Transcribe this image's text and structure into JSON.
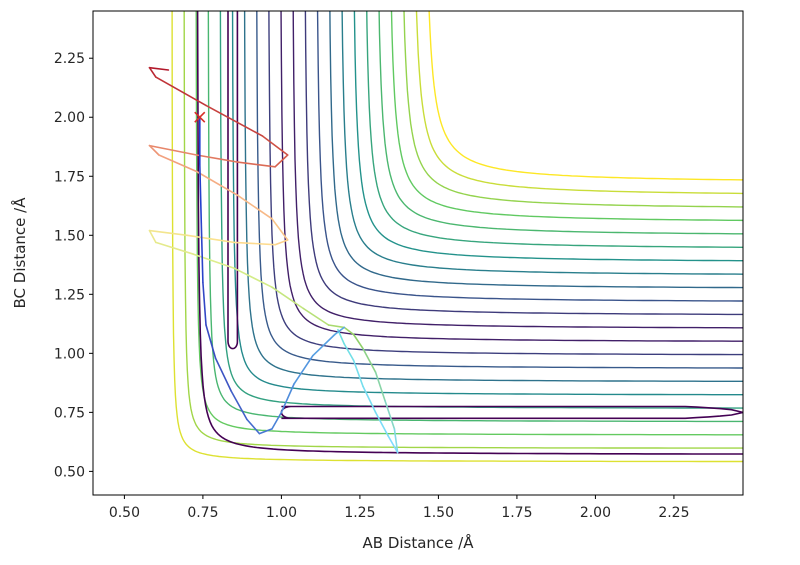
{
  "chart_data": {
    "type": "contour",
    "xlabel": "AB Distance /Å",
    "ylabel": "BC Distance /Å",
    "xlim": [
      0.4,
      2.47
    ],
    "ylim": [
      0.4,
      2.45
    ],
    "x_ticks": [
      0.5,
      0.75,
      1.0,
      1.25,
      1.5,
      1.75,
      2.0,
      2.25
    ],
    "x_tick_labels": [
      "0.50",
      "0.75",
      "1.00",
      "1.25",
      "1.50",
      "1.75",
      "2.00",
      "2.25"
    ],
    "y_ticks": [
      0.5,
      0.75,
      1.0,
      1.25,
      1.5,
      1.75,
      2.0,
      2.25
    ],
    "y_tick_labels": [
      "0.50",
      "0.75",
      "1.00",
      "1.25",
      "1.50",
      "1.75",
      "2.00",
      "2.25"
    ],
    "colormap": "viridis",
    "colormap_stops": [
      "#440154",
      "#3b528b",
      "#21918c",
      "#5ec962",
      "#fde725"
    ],
    "contour_levels": 22,
    "contours": {
      "inner_asymptote": {
        "x": 0.65,
        "y": 0.54
      },
      "outer_asymptote": {
        "x": 1.45,
        "y": 1.72
      },
      "inner_reactant_limb_x": 0.79,
      "inner_product_limb_y": 0.65
    },
    "well_contours": [
      {
        "name": "product-well",
        "tip_x": 2.47,
        "y": 0.75,
        "start_x": 1.0,
        "color": "#440154"
      },
      {
        "name": "reactant-well",
        "x_min": 0.83,
        "x_max": 0.86,
        "bottom_y": 1.02,
        "color": "#440154"
      }
    ],
    "trajectory": {
      "start_marker": {
        "x": 0.74,
        "y": 2.0,
        "color": "#d73027"
      },
      "marker_glyph": "x",
      "color_start": "#b2182b",
      "color_end": "#3b4cc0",
      "inner_path": [
        [
          0.74,
          2.0
        ],
        [
          0.74,
          1.8
        ],
        [
          0.745,
          1.55
        ],
        [
          0.75,
          1.3
        ],
        [
          0.76,
          1.12
        ],
        [
          0.79,
          0.98
        ],
        [
          0.84,
          0.84
        ],
        [
          0.89,
          0.72
        ],
        [
          0.93,
          0.66
        ],
        [
          0.97,
          0.68
        ],
        [
          1.0,
          0.75
        ],
        [
          1.04,
          0.87
        ],
        [
          1.1,
          0.99
        ],
        [
          1.17,
          1.08
        ],
        [
          1.2,
          1.11
        ]
      ],
      "outer_path": [
        [
          0.64,
          2.2
        ],
        [
          0.58,
          2.21
        ],
        [
          0.6,
          2.17
        ],
        [
          0.76,
          2.05
        ],
        [
          0.94,
          1.92
        ],
        [
          1.02,
          1.84
        ],
        [
          0.98,
          1.79
        ],
        [
          0.86,
          1.81
        ],
        [
          0.73,
          1.84
        ],
        [
          0.58,
          1.88
        ],
        [
          0.61,
          1.84
        ],
        [
          0.73,
          1.77
        ],
        [
          0.86,
          1.67
        ],
        [
          0.97,
          1.57
        ],
        [
          1.02,
          1.48
        ],
        [
          0.98,
          1.46
        ],
        [
          0.85,
          1.47
        ],
        [
          0.7,
          1.5
        ],
        [
          0.58,
          1.52
        ],
        [
          0.6,
          1.47
        ],
        [
          0.72,
          1.42
        ],
        [
          0.85,
          1.36
        ],
        [
          0.97,
          1.28
        ],
        [
          1.07,
          1.19
        ],
        [
          1.15,
          1.12
        ],
        [
          1.2,
          1.11
        ],
        [
          1.23,
          1.08
        ],
        [
          1.26,
          1.02
        ],
        [
          1.3,
          0.92
        ],
        [
          1.33,
          0.8
        ],
        [
          1.36,
          0.68
        ],
        [
          1.37,
          0.58
        ],
        [
          1.34,
          0.65
        ],
        [
          1.3,
          0.75
        ],
        [
          1.26,
          0.86
        ],
        [
          1.23,
          0.97
        ],
        [
          1.2,
          1.04
        ],
        [
          1.18,
          1.1
        ]
      ]
    }
  }
}
